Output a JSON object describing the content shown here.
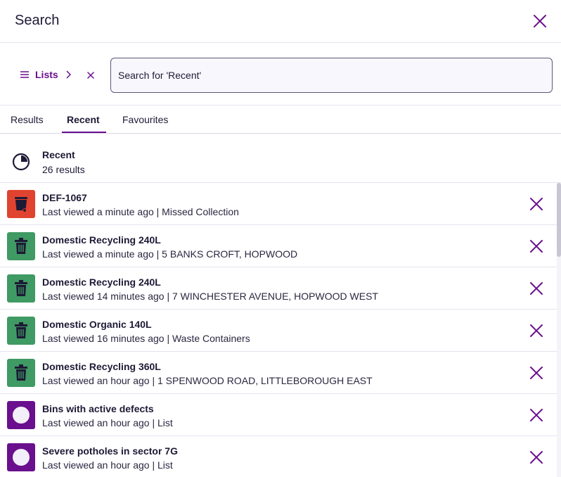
{
  "header": {
    "title": "Search",
    "close_icon": "close-icon"
  },
  "search": {
    "scope_icon": "hamburger-icon",
    "scope_label": "Lists",
    "scope_chevron_icon": "chevron-right-icon",
    "scope_clear_icon": "close-icon",
    "placeholder": "Search for 'Recent'",
    "value": ""
  },
  "tabs": [
    {
      "label": "Results",
      "active": false
    },
    {
      "label": "Recent",
      "active": true
    },
    {
      "label": "Favourites",
      "active": false
    }
  ],
  "summary": {
    "icon": "pie-chart-icon",
    "title": "Recent",
    "count": "26 results"
  },
  "items": [
    {
      "icon": "wheelie-bin-icon",
      "icon_bg": "#e0432f",
      "title": "DEF-1067",
      "subtitle": "Last viewed a minute ago | Missed Collection"
    },
    {
      "icon": "trash-icon",
      "icon_bg": "#3f9a63",
      "title": "Domestic Recycling 240L",
      "subtitle": "Last viewed a minute ago | 5 BANKS CROFT, HOPWOOD"
    },
    {
      "icon": "trash-icon",
      "icon_bg": "#3f9a63",
      "title": "Domestic Recycling 240L",
      "subtitle": "Last viewed 14 minutes ago | 7 WINCHESTER AVENUE, HOPWOOD WEST"
    },
    {
      "icon": "trash-icon",
      "icon_bg": "#3f9a63",
      "title": "Domestic Organic 140L",
      "subtitle": "Last viewed 16 minutes ago | Waste Containers"
    },
    {
      "icon": "trash-icon",
      "icon_bg": "#3f9a63",
      "title": "Domestic Recycling 360L",
      "subtitle": "Last viewed an hour ago | 1 SPENWOOD ROAD, LITTLEBOROUGH EAST"
    },
    {
      "icon": "list-circle-icon",
      "icon_bg": "#6a0f8e",
      "title": "Bins with active defects",
      "subtitle": "Last viewed an hour ago | List"
    },
    {
      "icon": "list-circle-icon",
      "icon_bg": "#6a0f8e",
      "title": "Severe potholes in sector 7G",
      "subtitle": "Last viewed an hour ago | List"
    }
  ],
  "colors": {
    "accent": "#6a0f8e",
    "text": "#1d1a35",
    "border": "#e6e4ee"
  }
}
